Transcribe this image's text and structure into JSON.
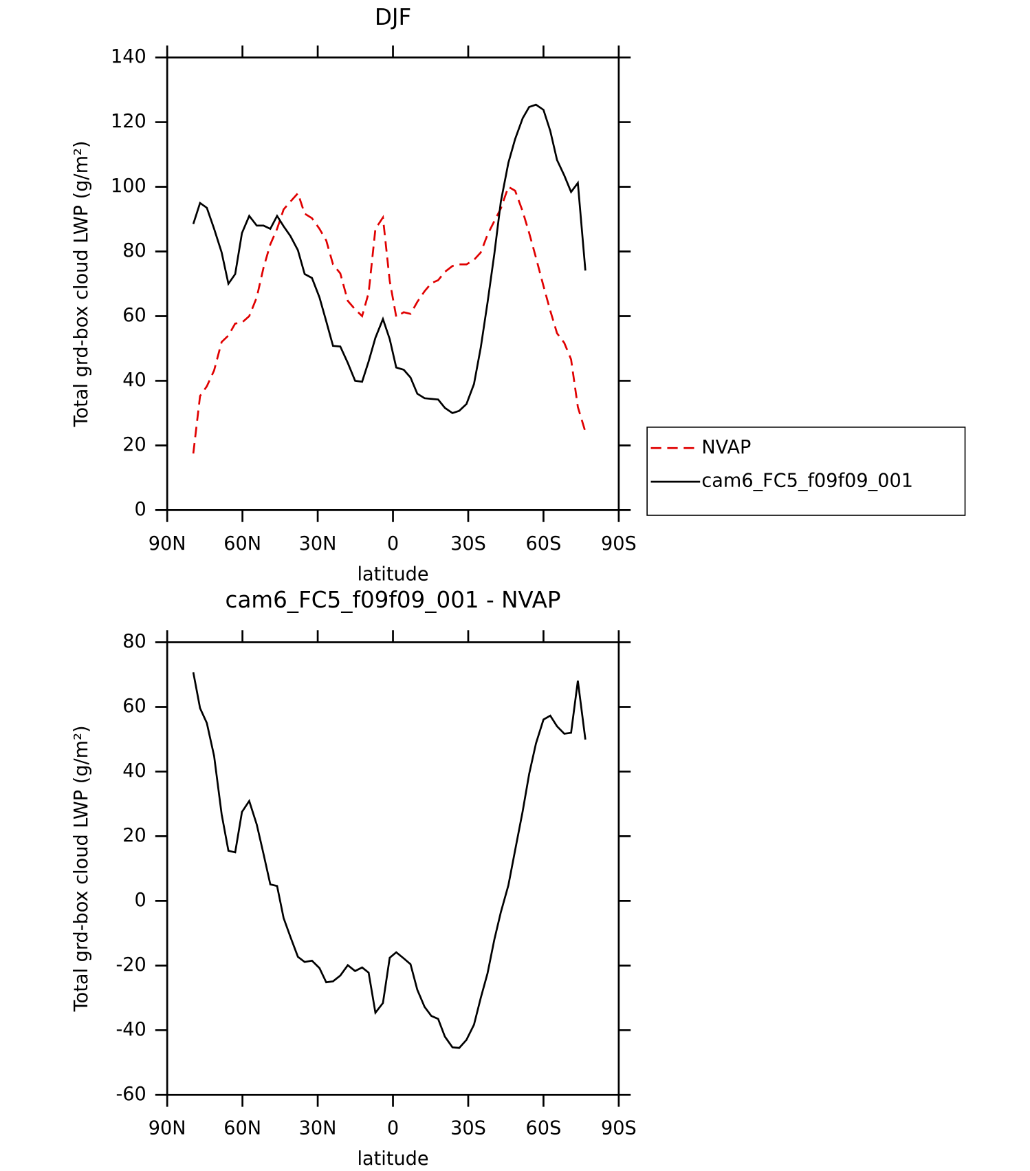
{
  "chart_data": [
    {
      "type": "line",
      "title": "DJF",
      "xlabel": "latitude",
      "ylabel": "Total grd-box cloud LWP (g/m²)",
      "x": [
        79.6,
        76.9,
        74.2,
        71.3,
        68.3,
        65.6,
        62.9,
        60.2,
        57.3,
        54.3,
        51.6,
        48.9,
        46.2,
        43.6,
        40.9,
        37.9,
        35.2,
        32.3,
        29.3,
        26.6,
        23.9,
        21.0,
        18.0,
        15.1,
        12.3,
        9.7,
        7.0,
        4.0,
        1.3,
        -1.3,
        -4.3,
        -7.0,
        -9.7,
        -12.6,
        -15.3,
        -18.0,
        -20.7,
        -23.7,
        -26.4,
        -29.3,
        -32.3,
        -35.0,
        -37.7,
        -40.4,
        -43.0,
        -46.0,
        -48.7,
        -51.7,
        -54.3,
        -57.0,
        -60.0,
        -62.7,
        -65.4,
        -68.3,
        -71.0,
        -73.7,
        -76.7
      ],
      "series": [
        {
          "name": "NVAP",
          "color": "#e00000",
          "dashed": true,
          "values": [
            17.5,
            35.3,
            38.3,
            43.2,
            52,
            54,
            57.7,
            58,
            60,
            65.8,
            75,
            82.2,
            87,
            93,
            95.4,
            98,
            91.7,
            90.3,
            87,
            83.4,
            76,
            73.2,
            64.7,
            62.1,
            60,
            67.2,
            87,
            90.5,
            70.9,
            59.8,
            61.2,
            60.7,
            64.4,
            67.7,
            70.2,
            71.1,
            73.7,
            75.5,
            76,
            76,
            77.4,
            79.7,
            85.2,
            89.4,
            93.3,
            100,
            98.8,
            92.4,
            85.7,
            78.1,
            69.3,
            61.7,
            54.7,
            51.7,
            46.6,
            31.9,
            24.2
          ]
        },
        {
          "name": "cam6_FC5_f09f09_001",
          "color": "#000000",
          "dashed": false,
          "values": [
            88.5,
            95,
            93.5,
            87,
            79.7,
            70,
            73,
            85.7,
            91,
            88,
            88,
            87,
            91,
            87.8,
            84.8,
            80.4,
            73,
            71.8,
            65.8,
            58.4,
            50.8,
            50.6,
            45.5,
            40,
            39.7,
            46,
            53.3,
            59.1,
            52.9,
            44.1,
            43.4,
            41,
            36,
            34.6,
            34.4,
            34.2,
            31.6,
            30,
            30.7,
            32.8,
            39,
            50.3,
            64.2,
            79.2,
            95.4,
            107.4,
            114.8,
            121.2,
            124.7,
            125.4,
            123.8,
            117.3,
            108.3,
            103.5,
            98.4,
            101.2,
            74.1
          ]
        }
      ],
      "xlim": [
        90,
        -90
      ],
      "xticks": [
        {
          "value": 90,
          "label": "90N"
        },
        {
          "value": 60,
          "label": "60N"
        },
        {
          "value": 30,
          "label": "30N"
        },
        0,
        {
          "value": -30,
          "label": "30S"
        },
        {
          "value": -60,
          "label": "60S"
        },
        {
          "value": -90,
          "label": "90S"
        }
      ],
      "ylim": [
        0,
        140
      ],
      "yticks": [
        0,
        20,
        40,
        60,
        80,
        100,
        120,
        140
      ],
      "legend": "right"
    },
    {
      "type": "line",
      "title": "cam6_FC5_f09f09_001 - NVAP",
      "xlabel": "latitude",
      "ylabel": "Total grd-box cloud LWP (g/m²)",
      "x": [
        79.6,
        76.9,
        74.2,
        71.3,
        68.3,
        65.6,
        62.9,
        60.2,
        57.3,
        54.3,
        51.6,
        48.9,
        46.2,
        43.6,
        40.9,
        37.9,
        35.2,
        32.3,
        29.3,
        26.6,
        23.9,
        21.0,
        18.0,
        15.1,
        12.3,
        9.7,
        7.0,
        4.0,
        1.3,
        -1.3,
        -4.3,
        -7.0,
        -9.7,
        -12.6,
        -15.3,
        -18.0,
        -20.7,
        -23.7,
        -26.4,
        -29.3,
        -32.3,
        -35.0,
        -37.7,
        -40.4,
        -43.0,
        -46.0,
        -48.7,
        -51.7,
        -54.3,
        -57.0,
        -60.0,
        -62.7,
        -65.4,
        -68.3,
        -71.0,
        -73.7,
        -76.7
      ],
      "color": "#000000",
      "values": [
        70.7,
        59.6,
        55,
        44.8,
        26.8,
        15.5,
        15,
        27.5,
        30.9,
        23.6,
        14.5,
        5.1,
        4.6,
        -5.3,
        -11.1,
        -17.3,
        -18.9,
        -18.5,
        -20.8,
        -25.2,
        -24.9,
        -23.1,
        -19.9,
        -21.7,
        -20.6,
        -22.2,
        -34.6,
        -31.6,
        -17.6,
        -15.9,
        -17.8,
        -19.6,
        -27.5,
        -32.8,
        -35.6,
        -36.5,
        -42,
        -45.3,
        -45.5,
        -43,
        -38.3,
        -30,
        -22.4,
        -12,
        -3.5,
        4.8,
        15.7,
        27.7,
        39.3,
        48.7,
        56.1,
        57.3,
        54,
        51.7,
        52,
        68.1,
        49.9
      ],
      "xlim": [
        90,
        -90
      ],
      "xticks": [
        {
          "value": 90,
          "label": "90N"
        },
        {
          "value": 60,
          "label": "60N"
        },
        {
          "value": 30,
          "label": "30N"
        },
        0,
        {
          "value": -30,
          "label": "30S"
        },
        {
          "value": -60,
          "label": "60S"
        },
        {
          "value": -90,
          "label": "90S"
        }
      ],
      "ylim": [
        -60,
        80
      ],
      "yticks": [
        -60,
        -40,
        -20,
        0,
        20,
        40,
        60,
        80
      ]
    }
  ]
}
